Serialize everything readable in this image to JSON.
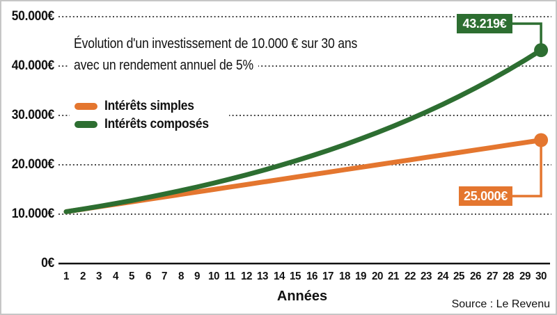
{
  "chart_data": {
    "type": "line",
    "title_line1": "Évolution d'un investissement de 10.000 € sur 30 ans",
    "title_line2": "avec un rendement annuel de 5%",
    "xlabel": "Années",
    "source": "Source : Le Revenu",
    "grid": "horizontal-dotted",
    "legend_position": "upper-left-inside",
    "ylim": [
      0,
      50000
    ],
    "x": [
      1,
      2,
      3,
      4,
      5,
      6,
      7,
      8,
      9,
      10,
      11,
      12,
      13,
      14,
      15,
      16,
      17,
      18,
      19,
      20,
      21,
      22,
      23,
      24,
      25,
      26,
      27,
      28,
      29,
      30
    ],
    "y_ticks": [
      {
        "value": 0,
        "label": "0€"
      },
      {
        "value": 10000,
        "label": "10.000€"
      },
      {
        "value": 20000,
        "label": "20.000€"
      },
      {
        "value": 30000,
        "label": "30.000€"
      },
      {
        "value": 40000,
        "label": "40.000€"
      },
      {
        "value": 50000,
        "label": "50.000€"
      }
    ],
    "series": [
      {
        "name": "Intérêts simples",
        "color": "#e4762f",
        "end_label": "25.000€",
        "values": [
          10500,
          11000,
          11500,
          12000,
          12500,
          13000,
          13500,
          14000,
          14500,
          15000,
          15500,
          16000,
          16500,
          17000,
          17500,
          18000,
          18500,
          19000,
          19500,
          20000,
          20500,
          21000,
          21500,
          22000,
          22500,
          23000,
          23500,
          24000,
          24500,
          25000
        ]
      },
      {
        "name": "Intérêts composés",
        "color": "#2d6e31",
        "end_label": "43.219€",
        "values": [
          10500,
          11025,
          11576,
          12155,
          12763,
          13401,
          14071,
          14775,
          15513,
          16289,
          17103,
          17959,
          18856,
          19799,
          20789,
          21829,
          22920,
          24066,
          25270,
          26533,
          27860,
          29253,
          30715,
          32251,
          33864,
          35557,
          37335,
          39201,
          41161,
          43219
        ]
      }
    ]
  }
}
